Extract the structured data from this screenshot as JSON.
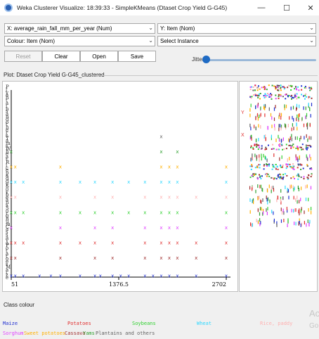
{
  "window": {
    "title": "Weka Clusterer Visualize: 18:39:33 - SimpleKMeans (Dtaset Crop Yield G-G45)",
    "minimize": "—",
    "maximize": "☐",
    "close": "✕"
  },
  "controls": {
    "x_axis": "X: average_rain_fall_mm_per_year (Num)",
    "y_axis": "Y: Item (Nom)",
    "colour": "Colour: Item (Nom)",
    "select_instance": "Select Instance",
    "reset": "Reset",
    "clear": "Clear",
    "open": "Open",
    "save": "Save",
    "jitter": "Jitter"
  },
  "plot": {
    "title": "Plot: Dtaset Crop Yield G-G45_clustered",
    "x_ticks": [
      "51",
      "1376.5",
      "2702"
    ],
    "y_axis_letters": [
      "P",
      "l",
      "y",
      "a",
      "n",
      "t",
      "a",
      "i",
      "n",
      "s",
      "a",
      "n",
      "d",
      "o",
      "t",
      "h",
      "e",
      "r",
      "s",
      "Y",
      "a",
      "m",
      "s",
      "W",
      "h",
      "e",
      "a",
      "t",
      "R",
      "i",
      "c",
      "e",
      "p",
      "a",
      "d",
      "d",
      "y",
      "S",
      "o",
      "y",
      "b",
      "e",
      "a",
      "n",
      "s",
      "S",
      "o",
      "r",
      "g",
      "h",
      "u",
      "m",
      "C",
      "a",
      "s",
      "s",
      "a",
      "v",
      "a",
      "P",
      "o",
      "t",
      "a",
      "t",
      "o",
      "e",
      "s",
      "M",
      "a",
      "i",
      "z",
      "e"
    ]
  },
  "legend": {
    "label": "Class colour",
    "items": [
      {
        "name": "Maize",
        "color": "#2030d0"
      },
      {
        "name": "Potatoes",
        "color": "#e03030"
      },
      {
        "name": "Soybeans",
        "color": "#30d030"
      },
      {
        "name": "Wheat",
        "color": "#30d8ff"
      },
      {
        "name": "Rice, paddy",
        "color": "#ffb0b0"
      },
      {
        "name": "Sorghum",
        "color": "#e040ff"
      },
      {
        "name": "Sweet potatoes",
        "color": "#ffb000"
      },
      {
        "name": "Cassava",
        "color": "#a03030"
      },
      {
        "name": "Yams",
        "color": "#30a030"
      },
      {
        "name": "Plantains and others",
        "color": "#606060"
      }
    ]
  },
  "watermark": {
    "line1": "Ac",
    "line2": "Go"
  },
  "chart_data": {
    "type": "scatter",
    "title": "Plot: Dtaset Crop Yield G-G45_clustered",
    "xlabel": "average_rain_fall_mm_per_year",
    "ylabel": "Item",
    "xlim": [
      51,
      2702
    ],
    "x_ticks": [
      51,
      1376.5,
      2702
    ],
    "categories": [
      "Maize",
      "Potatoes",
      "Soybeans",
      "Wheat",
      "Rice, paddy",
      "Sorghum",
      "Sweet potatoes",
      "Cassava",
      "Yams",
      "Plantains and others"
    ],
    "series": [
      {
        "name": "Maize",
        "color": "#2030d0",
        "x": [
          51,
          100,
          200,
          400,
          540,
          657,
          900,
          1083,
          1150,
          1300,
          1400,
          1500,
          1700,
          1800,
          1900,
          2000,
          2100,
          2331,
          2702
        ],
        "y_index": 0
      },
      {
        "name": "Cassava",
        "color": "#a03030",
        "x": [
          51,
          100,
          657,
          1083,
          1300,
          1700,
          1900,
          2000,
          2100,
          2331,
          2702
        ],
        "y_index": 1
      },
      {
        "name": "Potatoes",
        "color": "#e03030",
        "x": [
          51,
          100,
          200,
          657,
          900,
          1083,
          1300,
          1700,
          1900,
          2000,
          2100,
          2331,
          2702
        ],
        "y_index": 2
      },
      {
        "name": "Sorghum",
        "color": "#e040ff",
        "x": [
          51,
          657,
          1083,
          1300,
          1700,
          1900,
          2000,
          2100,
          2702
        ],
        "y_index": 3
      },
      {
        "name": "Soybeans",
        "color": "#30d030",
        "x": [
          51,
          100,
          200,
          657,
          900,
          1083,
          1300,
          1500,
          1700,
          1900,
          2000,
          2100,
          2702
        ],
        "y_index": 4
      },
      {
        "name": "Rice, paddy",
        "color": "#ffb0b0",
        "x": [
          51,
          100,
          657,
          1083,
          1300,
          1700,
          1900,
          2000,
          2100,
          2331,
          2702
        ],
        "y_index": 5
      },
      {
        "name": "Wheat",
        "color": "#30d8ff",
        "x": [
          51,
          100,
          200,
          657,
          900,
          1083,
          1300,
          1500,
          1700,
          1900,
          2000,
          2100,
          2702
        ],
        "y_index": 6
      },
      {
        "name": "Sweet potatoes",
        "color": "#ffb000",
        "x": [
          51,
          100,
          657,
          1900,
          2000,
          2100,
          2702
        ],
        "y_index": 7
      },
      {
        "name": "Yams",
        "color": "#30a030",
        "x": [
          51,
          1900,
          2100
        ],
        "y_index": 8
      },
      {
        "name": "Plantains and others",
        "color": "#606060",
        "x": [
          1900
        ],
        "y_index": 9
      }
    ]
  }
}
